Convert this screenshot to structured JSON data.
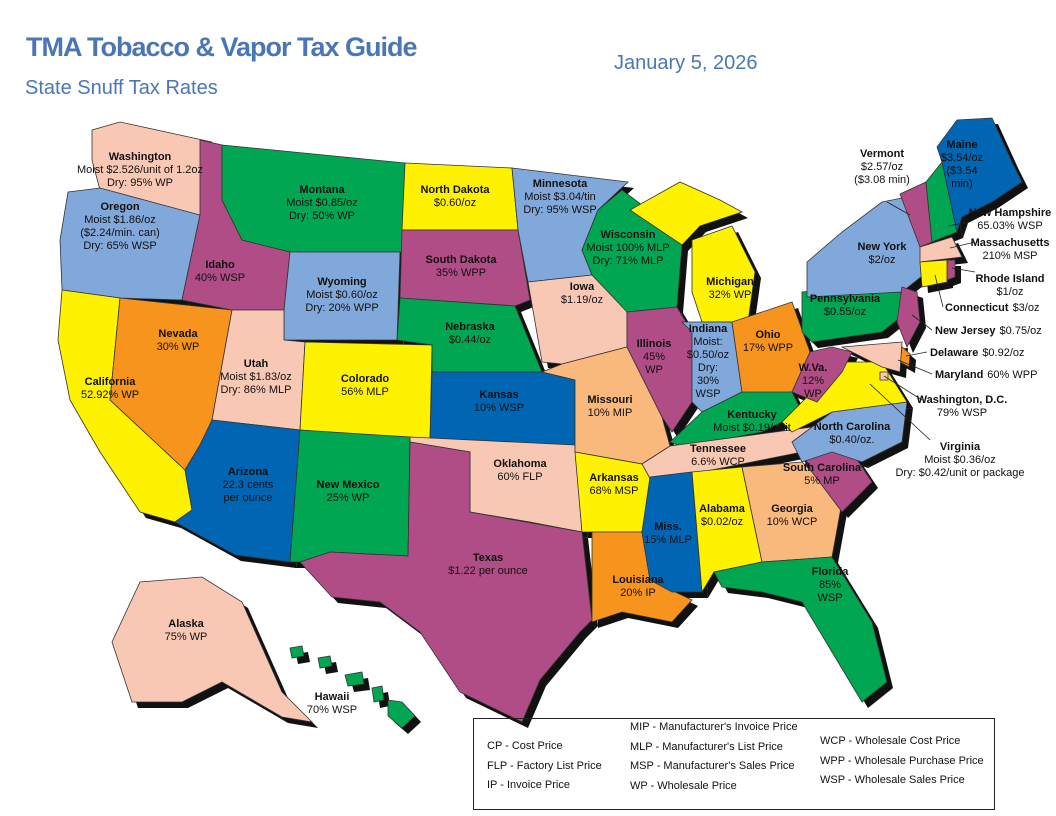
{
  "header": {
    "title": "TMA Tobacco & Vapor Tax Guide",
    "subtitle": "State Snuff Tax Rates",
    "date": "January 5, 2026"
  },
  "colors": {
    "title": "#4a76b8",
    "pink": "#f9c8b4",
    "lightblue": "#80a8da",
    "green": "#00a651",
    "yellow": "#fff200",
    "magenta": "#b04c86",
    "orange": "#f7941d",
    "darkblue": "#0066b3",
    "tan": "#f9b87c"
  },
  "states": [
    {
      "name": "Washington",
      "lines": [
        "Moist $2.526/unit of 1.2oz",
        "Dry: 95% WP"
      ],
      "color": "pink"
    },
    {
      "name": "Oregon",
      "lines": [
        "Moist $1.86/oz",
        "($2.24/min. can)",
        "Dry: 65% WSP"
      ],
      "color": "lightblue"
    },
    {
      "name": "California",
      "lines": [
        "52.92% WP"
      ],
      "color": "yellow"
    },
    {
      "name": "Nevada",
      "lines": [
        "30% WP"
      ],
      "color": "orange"
    },
    {
      "name": "Idaho",
      "lines": [
        "40% WSP"
      ],
      "color": "magenta"
    },
    {
      "name": "Montana",
      "lines": [
        "Moist $0.85/oz",
        "Dry: 50% WP"
      ],
      "color": "green"
    },
    {
      "name": "Wyoming",
      "lines": [
        "Moist $0.60/oz",
        "Dry: 20% WPP"
      ],
      "color": "lightblue"
    },
    {
      "name": "Utah",
      "lines": [
        "Moist $1.83/oz",
        "Dry: 86% MLP"
      ],
      "color": "pink"
    },
    {
      "name": "Colorado",
      "lines": [
        "56% MLP"
      ],
      "color": "yellow"
    },
    {
      "name": "Arizona",
      "lines": [
        "22.3 cents",
        "per ounce"
      ],
      "color": "darkblue"
    },
    {
      "name": "New Mexico",
      "lines": [
        "25% WP"
      ],
      "color": "green"
    },
    {
      "name": "North Dakota",
      "lines": [
        "$0.60/oz"
      ],
      "color": "yellow"
    },
    {
      "name": "South Dakota",
      "lines": [
        "35% WPP"
      ],
      "color": "magenta"
    },
    {
      "name": "Nebraska",
      "lines": [
        "$0.44/oz"
      ],
      "color": "green"
    },
    {
      "name": "Kansas",
      "lines": [
        "10% WSP"
      ],
      "color": "darkblue"
    },
    {
      "name": "Oklahoma",
      "lines": [
        "60% FLP"
      ],
      "color": "pink"
    },
    {
      "name": "Texas",
      "lines": [
        "$1.22 per ounce"
      ],
      "color": "magenta"
    },
    {
      "name": "Minnesota",
      "lines": [
        "Moist $3.04/tin",
        "Dry: 95% WSP"
      ],
      "color": "lightblue"
    },
    {
      "name": "Iowa",
      "lines": [
        "$1.19/oz"
      ],
      "color": "pink"
    },
    {
      "name": "Missouri",
      "lines": [
        "10% MIP"
      ],
      "color": "tan"
    },
    {
      "name": "Arkansas",
      "lines": [
        "68% MSP"
      ],
      "color": "yellow"
    },
    {
      "name": "Louisiana",
      "lines": [
        "20% IP"
      ],
      "color": "orange"
    },
    {
      "name": "Wisconsin",
      "lines": [
        "Moist 100% MLP",
        "Dry: 71% MLP"
      ],
      "color": "green"
    },
    {
      "name": "Illinois",
      "lines": [
        "45%",
        "WP"
      ],
      "color": "magenta"
    },
    {
      "name": "Michigan",
      "lines": [
        "32% WP"
      ],
      "color": "yellow"
    },
    {
      "name": "Indiana",
      "lines": [
        "Moist:",
        "$0.50/oz",
        "Dry:",
        "30%",
        "WSP"
      ],
      "color": "lightblue"
    },
    {
      "name": "Ohio",
      "lines": [
        "17% WPP"
      ],
      "color": "orange"
    },
    {
      "name": "Kentucky",
      "lines": [
        "Moist $0.19/unit"
      ],
      "color": "green"
    },
    {
      "name": "Tennessee",
      "lines": [
        "6.6% WCP"
      ],
      "color": "pink"
    },
    {
      "name": "Miss.",
      "lines": [
        "15% MLP"
      ],
      "color": "darkblue"
    },
    {
      "name": "Alabama",
      "lines": [
        "$0.02/oz"
      ],
      "color": "yellow"
    },
    {
      "name": "Georgia",
      "lines": [
        "10% WCP"
      ],
      "color": "tan"
    },
    {
      "name": "Florida",
      "lines": [
        "85%",
        "WSP"
      ],
      "color": "green"
    },
    {
      "name": "South Carolina",
      "lines": [
        "5% MP"
      ],
      "color": "magenta"
    },
    {
      "name": "North Carolina",
      "lines": [
        "$0.40/oz."
      ],
      "color": "lightblue"
    },
    {
      "name": "Virginia",
      "lines": [
        "Moist $0.36/oz",
        "Dry: $0.42/unit or package"
      ],
      "color": "yellow"
    },
    {
      "name": "W.Va.",
      "lines": [
        "12%",
        "WP"
      ],
      "color": "magenta"
    },
    {
      "name": "Pennsylvania",
      "lines": [
        "$0.55/oz"
      ],
      "color": "green"
    },
    {
      "name": "New York",
      "lines": [
        "$2/oz"
      ],
      "color": "lightblue"
    },
    {
      "name": "Vermont",
      "lines": [
        "$2.57/oz",
        "($3.08 min)"
      ],
      "color": "magenta"
    },
    {
      "name": "New Hampshire",
      "lines": [
        "65.03% WSP"
      ],
      "color": "green"
    },
    {
      "name": "Maine",
      "lines": [
        "$3.54/oz",
        "($3.54",
        "min)"
      ],
      "color": "darkblue"
    },
    {
      "name": "Massachusetts",
      "lines": [
        "210% MSP"
      ],
      "color": "pink"
    },
    {
      "name": "Rhode Island",
      "lines": [
        "$1/oz"
      ],
      "color": "magenta"
    },
    {
      "name": "Connecticut",
      "lines": [
        "$3/oz"
      ],
      "color": "yellow"
    },
    {
      "name": "New Jersey",
      "lines": [
        "$0.75/oz"
      ],
      "color": "magenta"
    },
    {
      "name": "Delaware",
      "lines": [
        "$0.92/oz"
      ],
      "color": "orange"
    },
    {
      "name": "Maryland",
      "lines": [
        "60% WPP"
      ],
      "color": "pink"
    },
    {
      "name": "Washington, D.C.",
      "lines": [
        "79% WSP"
      ],
      "color": "pink"
    },
    {
      "name": "Alaska",
      "lines": [
        "75% WP"
      ],
      "color": "pink"
    },
    {
      "name": "Hawaii",
      "lines": [
        "70% WSP"
      ],
      "color": "green"
    }
  ],
  "legend": {
    "col1": [
      "CP - Cost Price",
      "FLP - Factory List Price",
      "IP - Invoice Price"
    ],
    "col2": [
      "MIP - Manufacturer's Invoice Price",
      "MLP - Manufacturer's List Price",
      "MSP - Manufacturer's Sales Price",
      "WP - Wholesale Price"
    ],
    "col3": [
      "WCP - Wholesale Cost Price",
      "WPP - Wholesale Purchase Price",
      "WSP - Wholesale Sales Price"
    ]
  }
}
